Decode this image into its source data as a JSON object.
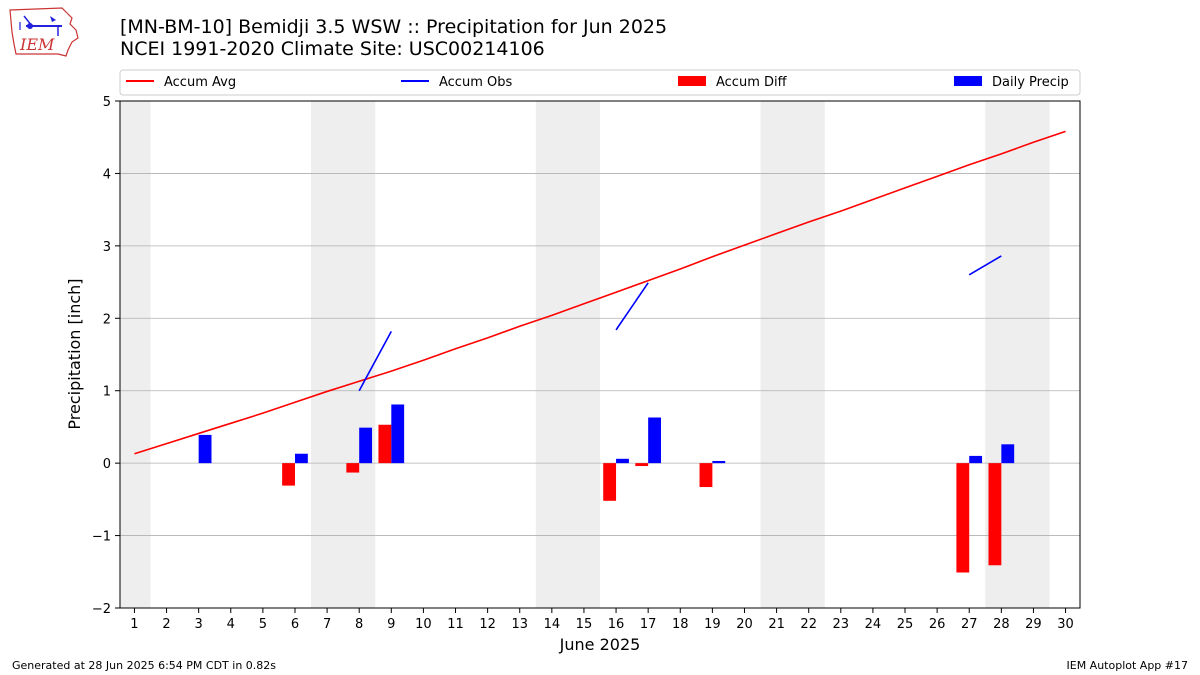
{
  "header": {
    "title_line1": "[MN-BM-10] Bemidji 3.5 WSW :: Precipitation for Jun 2025",
    "title_line2": "NCEI 1991-2020 Climate Site: USC00214106"
  },
  "logo": {
    "text": "IEM"
  },
  "footer": {
    "left": "Generated at 28 Jun 2025 6:54 PM CDT in 0.82s",
    "right": "IEM Autoplot App #17"
  },
  "colors": {
    "avg": "#ff0000",
    "obs": "#0000ff",
    "diff": "#ff0000",
    "daily": "#0000ff",
    "weekend": "#eeeeee",
    "grid": "#b0b0b0"
  },
  "chart_data": {
    "type": "bar",
    "xlabel": "June 2025",
    "ylabel": "Precipitation [inch]",
    "ylim": [
      -2,
      5
    ],
    "yticks": [
      -2,
      -1,
      0,
      1,
      2,
      3,
      4,
      5
    ],
    "ytick_labels": [
      "−2",
      "−1",
      "0",
      "1",
      "2",
      "3",
      "4",
      "5"
    ],
    "grid": true,
    "legend_placement": "top",
    "days": [
      1,
      2,
      3,
      4,
      5,
      6,
      7,
      8,
      9,
      10,
      11,
      12,
      13,
      14,
      15,
      16,
      17,
      18,
      19,
      20,
      21,
      22,
      23,
      24,
      25,
      26,
      27,
      28,
      29,
      30
    ],
    "weekend_shading": [
      [
        0.5,
        1.5
      ],
      [
        6.5,
        8.5
      ],
      [
        13.5,
        15.5
      ],
      [
        20.5,
        22.5
      ],
      [
        27.5,
        29.5
      ]
    ],
    "legend": [
      {
        "label": "Accum Avg",
        "kind": "line",
        "color": "#ff0000"
      },
      {
        "label": "Accum Obs",
        "kind": "line",
        "color": "#0000ff"
      },
      {
        "label": "Accum Diff",
        "kind": "bar",
        "color": "#ff0000"
      },
      {
        "label": "Daily Precip",
        "kind": "bar",
        "color": "#0000ff"
      }
    ],
    "series": [
      {
        "name": "Accum Avg",
        "type": "line",
        "x": [
          1,
          2,
          3,
          4,
          5,
          6,
          7,
          8,
          9,
          10,
          11,
          12,
          13,
          14,
          15,
          16,
          17,
          18,
          19,
          20,
          21,
          22,
          23,
          24,
          25,
          26,
          27,
          28,
          29,
          30
        ],
        "values": [
          0.13,
          0.27,
          0.41,
          0.55,
          0.69,
          0.84,
          0.99,
          1.13,
          1.27,
          1.42,
          1.58,
          1.73,
          1.89,
          2.04,
          2.2,
          2.36,
          2.52,
          2.68,
          2.85,
          3.01,
          3.17,
          3.33,
          3.48,
          3.64,
          3.8,
          3.96,
          4.12,
          4.27,
          4.43,
          4.58
        ]
      },
      {
        "name": "Accum Obs",
        "type": "line",
        "segments": [
          {
            "x": [
              8,
              9
            ],
            "values": [
              1.0,
              1.82
            ]
          },
          {
            "x": [
              16,
              17
            ],
            "values": [
              1.84,
              2.49
            ]
          },
          {
            "x": [
              27,
              28
            ],
            "values": [
              2.6,
              2.86
            ]
          }
        ]
      },
      {
        "name": "Accum Diff",
        "type": "bar",
        "x": [
          6,
          8,
          9,
          16,
          17,
          19,
          27,
          28
        ],
        "values": [
          -0.31,
          -0.13,
          0.53,
          -0.52,
          -0.04,
          -0.33,
          -1.51,
          -1.41
        ]
      },
      {
        "name": "Daily Precip",
        "type": "bar",
        "x": [
          3,
          6,
          8,
          9,
          16,
          17,
          19,
          27,
          28
        ],
        "values": [
          0.39,
          0.13,
          0.49,
          0.81,
          0.06,
          0.63,
          0.03,
          0.1,
          0.26
        ]
      }
    ]
  }
}
